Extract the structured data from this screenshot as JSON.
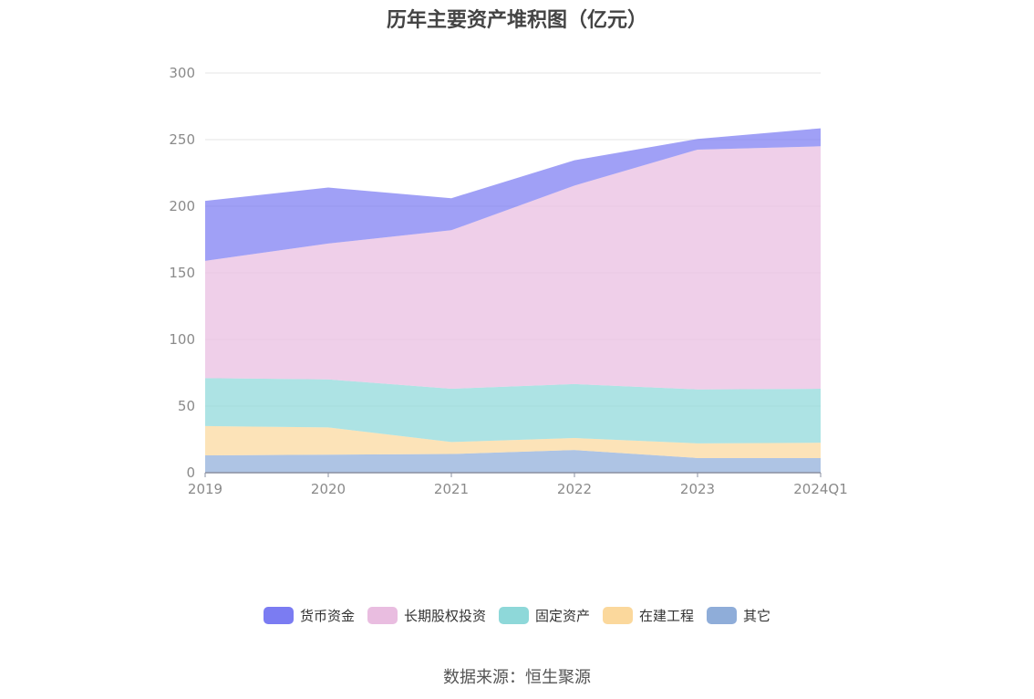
{
  "chart_data": {
    "type": "area",
    "stacked": true,
    "title": "历年主要资产堆积图（亿元）",
    "categories": [
      "2019",
      "2020",
      "2021",
      "2022",
      "2023",
      "2024Q1"
    ],
    "ylim": [
      0,
      300
    ],
    "yticks": [
      0,
      50,
      100,
      150,
      200,
      250,
      300
    ],
    "grid": true,
    "legend_position": "bottom",
    "series": [
      {
        "name": "其它",
        "color": "#8fadd9",
        "values": [
          13,
          13.5,
          14,
          17,
          11,
          11
        ]
      },
      {
        "name": "在建工程",
        "color": "#fbd89c",
        "values": [
          22,
          20.5,
          9,
          9,
          11,
          11.5
        ]
      },
      {
        "name": "固定资产",
        "color": "#8ed8d9",
        "values": [
          36,
          36,
          40,
          40.5,
          40.5,
          40.5
        ]
      },
      {
        "name": "长期股权投资",
        "color": "#e9bde0",
        "values": [
          88,
          102,
          119,
          149,
          180,
          182
        ]
      },
      {
        "name": "货币资金",
        "color": "#7b7cf2",
        "values": [
          45,
          42,
          24,
          19,
          8,
          13.5
        ]
      }
    ]
  },
  "legend_order": [
    "货币资金",
    "长期股权投资",
    "固定资产",
    "在建工程",
    "其它"
  ],
  "source_note": "数据来源：恒生聚源"
}
